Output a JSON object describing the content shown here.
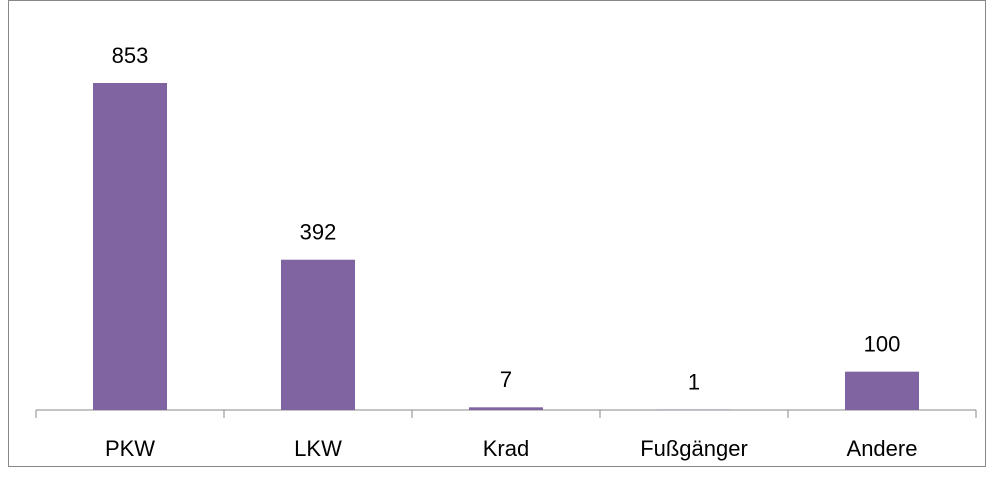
{
  "chart_data": {
    "type": "bar",
    "categories": [
      "PKW",
      "LKW",
      "Krad",
      "Fußgänger",
      "Andere"
    ],
    "values": [
      853,
      392,
      7,
      1,
      100
    ],
    "color": "#8064a2"
  }
}
